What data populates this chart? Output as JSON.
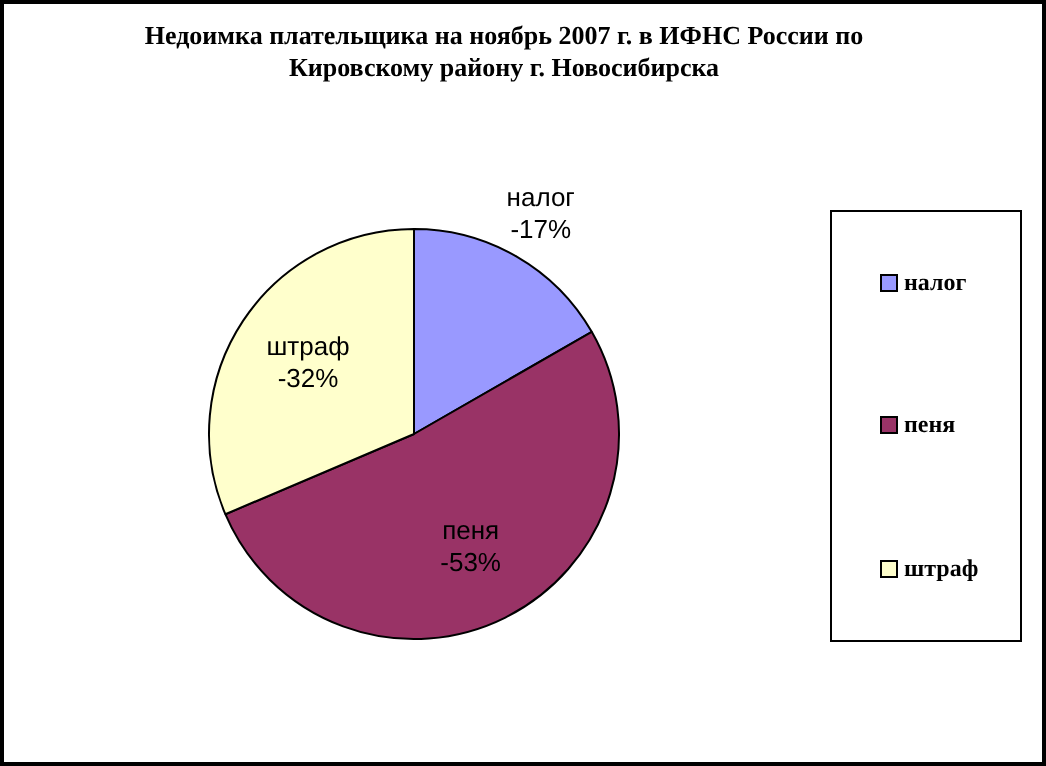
{
  "chart_data": {
    "type": "pie",
    "title": "Недоимка плательщика на ноябрь 2007 г. в ИФНС России по Кировскому району г. Новосибирска",
    "categories": [
      "налог",
      "пеня",
      "штраф"
    ],
    "values": [
      16.7,
      51.9,
      31.4
    ],
    "annotations": [
      "-17%",
      "-53%",
      "-32%"
    ],
    "colors": [
      "#9999ff",
      "#993366",
      "#ffffcc"
    ],
    "legend": "right"
  }
}
